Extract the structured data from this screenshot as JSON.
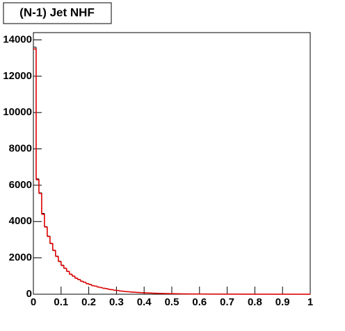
{
  "chart_data": {
    "type": "histogram",
    "title": "(N-1) Jet NHF",
    "bins": [
      0,
      0.01,
      0.02,
      0.03,
      0.04,
      0.05,
      0.06,
      0.07,
      0.08,
      0.09,
      0.1,
      0.11,
      0.12,
      0.13,
      0.14,
      0.15,
      0.16,
      0.17,
      0.18,
      0.19,
      0.2,
      0.21,
      0.22,
      0.23,
      0.24,
      0.25,
      0.26,
      0.27,
      0.28,
      0.29,
      0.3,
      0.31,
      0.32,
      0.33,
      0.34,
      0.35,
      0.36,
      0.37,
      0.38,
      0.39,
      0.4,
      0.41,
      0.42,
      0.43,
      0.44,
      0.45,
      0.46,
      0.47,
      0.48,
      0.49,
      0.5,
      0.51,
      0.52,
      0.53,
      0.54,
      0.55,
      0.56,
      0.57,
      0.58,
      0.59,
      0.6,
      0.61,
      0.62,
      0.63,
      0.64,
      0.65,
      0.66,
      0.67,
      0.68,
      0.69,
      0.7,
      0.71,
      0.72,
      0.73,
      0.74,
      0.75,
      0.76,
      0.77,
      0.78,
      0.79,
      0.8,
      0.81,
      0.82,
      0.83,
      0.84,
      0.85,
      0.86,
      0.87,
      0.88,
      0.89,
      0.9,
      0.91,
      0.92,
      0.93,
      0.94,
      0.95,
      0.96,
      0.97,
      0.98,
      0.99,
      1
    ],
    "series": [
      {
        "color": "#000000",
        "values": [
          13600,
          6350,
          5580,
          4450,
          3720,
          3200,
          2780,
          2400,
          2100,
          1820,
          1600,
          1420,
          1250,
          1110,
          990,
          890,
          800,
          720,
          650,
          590,
          530,
          480,
          440,
          400,
          360,
          330,
          300,
          270,
          245,
          220,
          200,
          180,
          162,
          146,
          132,
          120,
          110,
          100,
          90,
          82,
          75,
          68,
          62,
          56,
          51,
          46,
          42,
          38,
          34,
          31,
          28,
          25,
          22,
          20,
          18,
          16,
          15,
          14,
          13,
          12,
          11,
          10,
          9,
          8,
          8,
          7,
          7,
          6,
          6,
          5,
          5,
          5,
          4,
          4,
          4,
          3,
          3,
          3,
          3,
          2,
          2,
          2,
          2,
          2,
          2,
          1,
          1,
          1,
          1,
          1,
          1,
          1,
          1,
          1,
          0,
          0,
          0,
          0,
          0,
          0
        ]
      },
      {
        "color": "#e00000",
        "values": [
          13500,
          6300,
          5550,
          4400,
          3700,
          3180,
          2800,
          2420,
          2080,
          1800,
          1580,
          1430,
          1260,
          1100,
          1000,
          880,
          810,
          710,
          660,
          580,
          540,
          470,
          445,
          395,
          365,
          325,
          305,
          265,
          250,
          215,
          205,
          178,
          165,
          144,
          135,
          118,
          112,
          98,
          92,
          80,
          76,
          67,
          63,
          55,
          52,
          45,
          43,
          37,
          35,
          30,
          29,
          24,
          23,
          19,
          18,
          16,
          15,
          13,
          13,
          12,
          11,
          10,
          9,
          8,
          8,
          7,
          7,
          6,
          6,
          5,
          5,
          5,
          4,
          4,
          4,
          3,
          3,
          3,
          3,
          2,
          2,
          2,
          2,
          2,
          2,
          1,
          1,
          1,
          1,
          1,
          1,
          1,
          1,
          1,
          0,
          0,
          0,
          0,
          0,
          0
        ]
      }
    ],
    "xlim": [
      0,
      1
    ],
    "xticks": [
      0,
      0.1,
      0.2,
      0.3,
      0.4,
      0.5,
      0.6,
      0.7,
      0.8,
      0.9,
      1
    ],
    "ylim": [
      0,
      14400
    ],
    "yticks": [
      0,
      2000,
      4000,
      6000,
      8000,
      10000,
      12000,
      14000
    ]
  }
}
